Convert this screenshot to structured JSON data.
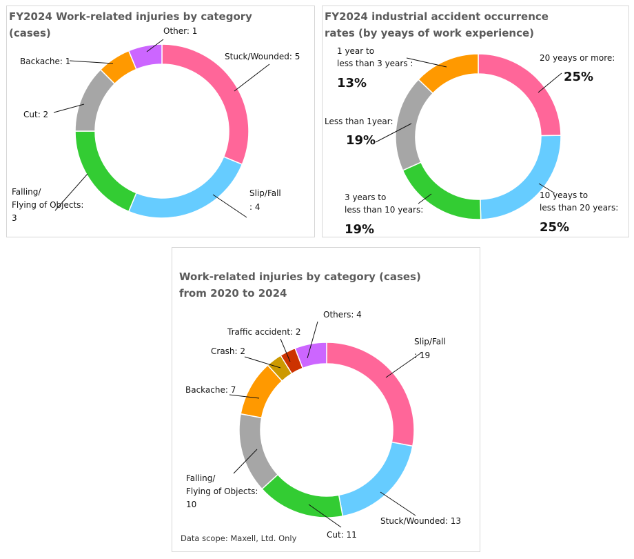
{
  "chart_data": [
    {
      "id": "c1",
      "type": "pie",
      "title_lines": [
        "FY2024 Work-related injuries by category",
        "(cases)"
      ],
      "categories": [
        "Stuck/Wounded",
        "Slip/Fall",
        "Falling/Flying of Objects",
        "Cut",
        "Backache",
        "Other"
      ],
      "values": [
        5,
        4,
        3,
        2,
        1,
        1
      ],
      "label_lines": [
        [
          "Stuck/Wounded: 5"
        ],
        [
          "Slip/Fall",
          ": 4"
        ],
        [
          "Falling/",
          "Flying of Objects:",
          "3"
        ],
        [
          "Cut: 2"
        ],
        [
          "Backache: 1"
        ],
        [
          "Other: 1"
        ]
      ],
      "colors": [
        "#ff6699",
        "#66ccff",
        "#33cc33",
        "#a6a6a6",
        "#ff9900",
        "#cc66ff"
      ]
    },
    {
      "id": "c2",
      "type": "pie",
      "title_lines": [
        "FY2024 industrial accident occurrence",
        "rates (by yeays of work experience)"
      ],
      "categories": [
        "20 yeays or more",
        "10 yeays to less than 20 years",
        "3 years to less than 10 years",
        "Less than 1year",
        "1 year to less than 3 years"
      ],
      "values": [
        25,
        25,
        19,
        19,
        13
      ],
      "unit": "%",
      "label_lines": [
        [
          "20 yeays or more:"
        ],
        [
          "10 yeays to",
          "less than 20 years:"
        ],
        [
          "3 years to",
          "less than 10 years:"
        ],
        [
          "Less than 1year:"
        ],
        [
          "1 year to",
          "less than 3 years :"
        ]
      ],
      "value_labels": [
        "25%",
        "25%",
        "19%",
        "19%",
        "13%"
      ],
      "colors": [
        "#ff6699",
        "#66ccff",
        "#33cc33",
        "#a6a6a6",
        "#ff9900"
      ]
    },
    {
      "id": "c3",
      "type": "pie",
      "title_lines": [
        "Work-related injuries by category (cases)",
        "from 2020 to 2024"
      ],
      "categories": [
        "Slip/Fall",
        "Stuck/Wounded",
        "Cut",
        "Falling/Flying of Objects",
        "Backache",
        "Crash",
        "Traffic accident",
        "Others"
      ],
      "values": [
        19,
        13,
        11,
        10,
        7,
        2,
        2,
        4
      ],
      "label_lines": [
        [
          "Slip/Fall",
          ": 19"
        ],
        [
          "Stuck/Wounded: 13"
        ],
        [
          "Cut: 11"
        ],
        [
          "Falling/",
          "Flying of Objects:",
          "10"
        ],
        [
          "Backache: 7"
        ],
        [
          "Crash: 2"
        ],
        [
          "Traffic accident: 2"
        ],
        [
          "Others: 4"
        ]
      ],
      "colors": [
        "#ff6699",
        "#66ccff",
        "#33cc33",
        "#a6a6a6",
        "#ff9900",
        "#cc9900",
        "#cc3300",
        "#cc66ff"
      ]
    }
  ],
  "footer": {
    "data_scope": "Data scope: Maxell, Ltd. Only"
  }
}
